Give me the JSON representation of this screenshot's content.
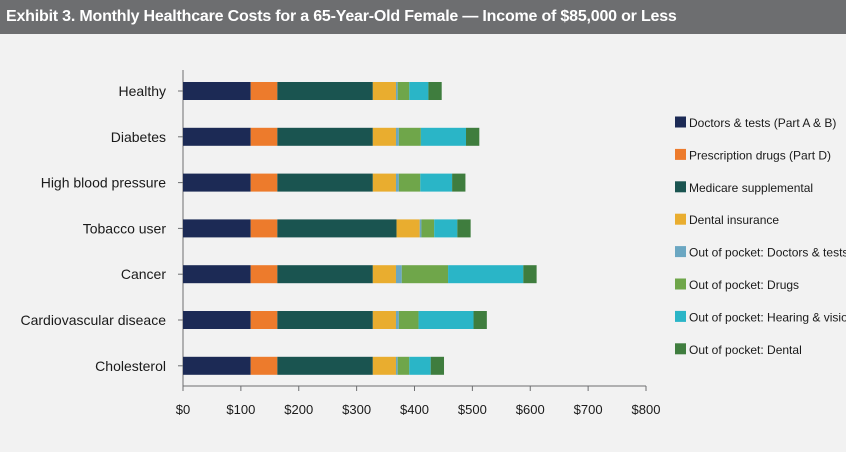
{
  "chart_data": {
    "type": "bar",
    "orientation": "horizontal",
    "stacked": true,
    "title": "Exhibit 3. Monthly Healthcare Costs for a 65-Year-Old Female — Income of $85,000 or Less",
    "categories": [
      "Healthy",
      "Diabetes",
      "High blood pressure",
      "Tobacco user",
      "Cancer",
      "Cardiovascular diseace",
      "Cholesterol"
    ],
    "series": [
      {
        "name": "Doctors & tests (Part A & B)",
        "color": "#1c2a55",
        "values": [
          117,
          117,
          117,
          117,
          117,
          117,
          117
        ]
      },
      {
        "name": "Prescription drugs (Part D)",
        "color": "#ed7b2c",
        "values": [
          46,
          46,
          46,
          46,
          46,
          46,
          46
        ]
      },
      {
        "name": "Medicare supplemental",
        "color": "#1a5450",
        "values": [
          165,
          165,
          165,
          206,
          165,
          165,
          165
        ]
      },
      {
        "name": "Dental insurance",
        "color": "#e9ad2f",
        "values": [
          40,
          40,
          40,
          40,
          40,
          40,
          40
        ]
      },
      {
        "name": "Out of pocket: Doctors & tests",
        "color": "#6ba7c2",
        "values": [
          3,
          5,
          5,
          3,
          10,
          5,
          3
        ]
      },
      {
        "name": "Out of pocket: Drugs",
        "color": "#6fa64a",
        "values": [
          20,
          38,
          37,
          22,
          80,
          34,
          20
        ]
      },
      {
        "name": "Out of pocket: Hearing & vision",
        "color": "#2ab5c7",
        "values": [
          33,
          78,
          55,
          40,
          130,
          95,
          37
        ]
      },
      {
        "name": "Out of pocket: Dental",
        "color": "#3f7d3e",
        "values": [
          23,
          23,
          23,
          23,
          23,
          23,
          23
        ]
      }
    ],
    "legend_labels": [
      "Doctors & tests (Part A & B)",
      "Prescription drugs (Part D)",
      "Medicare supplemental",
      "Dental insurance",
      "Out of pocket: Doctors & tests",
      "Out of pocket: Drugs",
      "Out of pocket: Hearing & visio",
      "Out of pocket: Dental"
    ],
    "xlim": [
      0,
      800
    ],
    "xticks": [
      0,
      100,
      200,
      300,
      400,
      500,
      600,
      700,
      800
    ],
    "xtick_labels": [
      "$0",
      "$100",
      "$200",
      "$300",
      "$400",
      "$500",
      "$600",
      "$700",
      "$800"
    ],
    "xlabel": "",
    "ylabel": "",
    "legend_position": "right"
  }
}
